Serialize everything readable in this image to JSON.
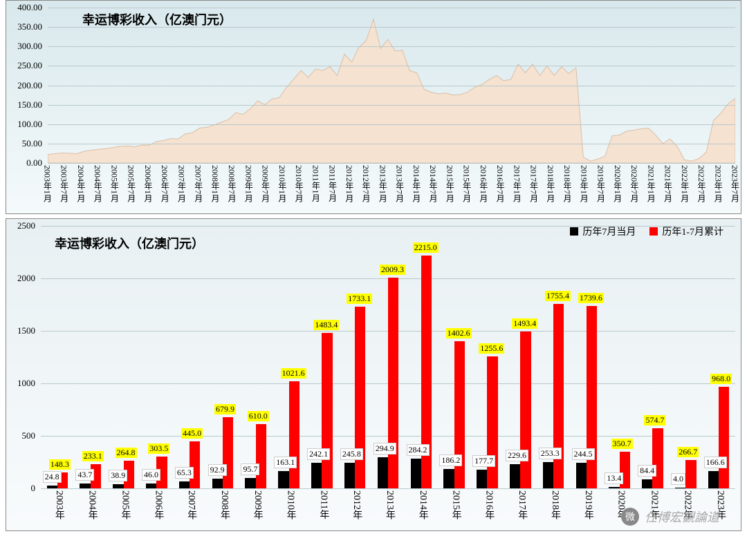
{
  "chart1": {
    "type": "area",
    "title": "幸运博彩收入（亿澳门元）",
    "title_fontsize": 18,
    "background_gradient": [
      "#d8e8ec",
      "#f5fafb"
    ],
    "area_color": "#f5e2d0",
    "area_stroke": "#d8bfa8",
    "grid_color": "#b8c8cc",
    "ylim": [
      0,
      400
    ],
    "ytick_step": 50,
    "yticks": [
      "0.00",
      "50.00",
      "100.00",
      "150.00",
      "200.00",
      "250.00",
      "300.00",
      "350.00",
      "400.00"
    ],
    "x_labels": [
      "2003年1月",
      "2003年7月",
      "2004年1月",
      "2004年7月",
      "2005年1月",
      "2005年7月",
      "2006年1月",
      "2006年7月",
      "2007年1月",
      "2007年7月",
      "2008年1月",
      "2008年7月",
      "2009年1月",
      "2009年7月",
      "2010年1月",
      "2010年7月",
      "2011年1月",
      "2011年7月",
      "2012年1月",
      "2012年7月",
      "2013年1月",
      "2013年7月",
      "2014年1月",
      "2014年7月",
      "2015年1月",
      "2015年7月",
      "2016年1月",
      "2016年7月",
      "2017年1月",
      "2017年7月",
      "2018年1月",
      "2018年7月",
      "2019年1月",
      "2019年7月",
      "2020年1月",
      "2020年7月",
      "2021年1月",
      "2021年7月",
      "2022年1月",
      "2022年7月",
      "2023年1月",
      "2023年7月"
    ],
    "series": [
      22,
      24,
      26,
      25,
      24,
      30,
      33,
      35,
      37,
      40,
      43,
      44,
      42,
      46,
      46,
      55,
      58,
      63,
      62,
      75,
      78,
      90,
      92,
      98,
      105,
      112,
      130,
      125,
      140,
      160,
      150,
      165,
      168,
      195,
      216,
      238,
      220,
      242,
      238,
      248,
      225,
      280,
      260,
      298,
      315,
      370,
      295,
      318,
      288,
      290,
      238,
      232,
      190,
      182,
      178,
      180,
      175,
      176,
      182,
      195,
      202,
      215,
      225,
      212,
      215,
      255,
      232,
      255,
      225,
      250,
      225,
      248,
      230,
      245,
      15,
      5,
      10,
      18,
      70,
      72,
      82,
      85,
      88,
      90,
      72,
      50,
      62,
      42,
      8,
      5,
      12,
      28,
      110,
      128,
      152,
      166
    ]
  },
  "chart2": {
    "type": "bar",
    "title": "幸运博彩收入（亿澳门元）",
    "title_fontsize": 18,
    "background_gradient": [
      "#e8f0f3",
      "#f8fbfc"
    ],
    "grid_color": "#b8c8cc",
    "ylim": [
      0,
      2500
    ],
    "ytick_step": 500,
    "yticks": [
      "0",
      "500",
      "1000",
      "1500",
      "2000",
      "2500"
    ],
    "x_labels": [
      "2003年",
      "2004年",
      "2005年",
      "2006年",
      "2007年",
      "2008年",
      "2009年",
      "2010年",
      "2011年",
      "2012年",
      "2013年",
      "2014年",
      "2015年",
      "2016年",
      "2017年",
      "2018年",
      "2019年",
      "2020年",
      "2021年",
      "2022年",
      "2023年"
    ],
    "legend": [
      {
        "label": "历年7月当月",
        "color": "#000000"
      },
      {
        "label": "历年1-7月累计",
        "color": "#ff0000"
      }
    ],
    "series_black": [
      24.8,
      43.7,
      38.9,
      46.0,
      65.3,
      92.9,
      95.7,
      163.1,
      242.1,
      245.8,
      294.9,
      284.2,
      186.2,
      177.7,
      229.6,
      253.3,
      244.5,
      13.4,
      84.4,
      4.0,
      166.6
    ],
    "series_red": [
      148.3,
      233.1,
      264.8,
      303.5,
      445.0,
      679.9,
      610.0,
      1021.6,
      1483.4,
      1733.1,
      2009.3,
      2215.0,
      1402.6,
      1255.6,
      1493.4,
      1755.4,
      1739.6,
      350.7,
      574.7,
      266.7,
      968.0
    ],
    "black_label_bg": "#ffffff",
    "red_label_bg": "#ffff00",
    "bar_width_ratio": 0.32
  },
  "watermark": {
    "text": "任博宏觀論道",
    "icon": "微"
  }
}
